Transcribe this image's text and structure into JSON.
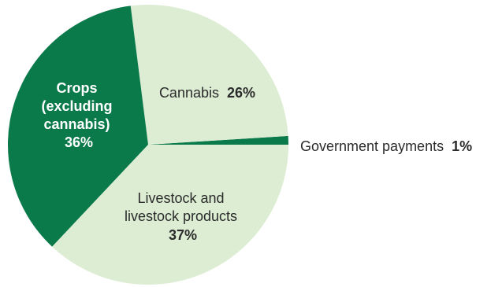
{
  "chart_data": {
    "type": "pie",
    "start_angle_deg": 0,
    "direction": "counterclockwise",
    "slices": [
      {
        "id": "government",
        "label_lines": [
          "Government payments"
        ],
        "value": 1,
        "value_text": "1%",
        "color": "#0b7a4b",
        "label_color": "#2b2b2b"
      },
      {
        "id": "cannabis",
        "label_lines": [
          "Cannabis"
        ],
        "value": 26,
        "value_text": "26%",
        "color": "#dcedd3",
        "label_color": "#2b2b2b"
      },
      {
        "id": "crops",
        "label_lines": [
          "Crops",
          "(excluding",
          "cannabis)"
        ],
        "value": 36,
        "value_text": "36%",
        "color": "#0b7a4b",
        "label_color": "#ffffff"
      },
      {
        "id": "livestock",
        "label_lines": [
          "Livestock and",
          "livestock products"
        ],
        "value": 37,
        "value_text": "37%",
        "color": "#dcedd3",
        "label_color": "#2b2b2b"
      }
    ]
  }
}
